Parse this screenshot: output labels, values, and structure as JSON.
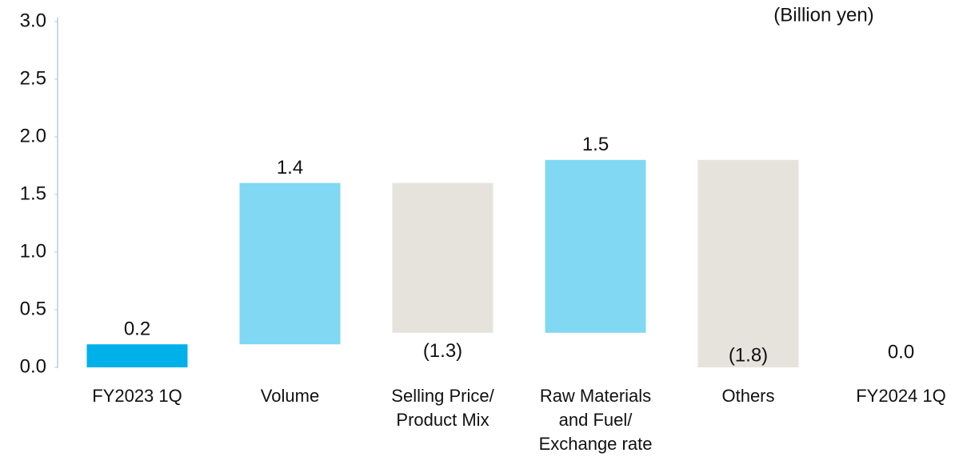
{
  "chart_data": {
    "type": "waterfall",
    "unit_label": "(Billion yen)",
    "categories": [
      "FY2023 1Q",
      "Volume",
      "Selling Price/ Product Mix",
      "Raw Materials and Fuel/ Exchange rate",
      "Others",
      "FY2024 1Q"
    ],
    "values": [
      0.2,
      1.4,
      -1.3,
      1.5,
      -1.8,
      0.0
    ],
    "value_labels": [
      "0.2",
      "1.4",
      "(1.3)",
      "1.5",
      "(1.8)",
      "0.0"
    ],
    "colors": [
      "#00b0e8",
      "#80d8f2",
      "#e6e3dd",
      "#80d8f2",
      "#e6e3dd",
      "#00b0e8"
    ],
    "ylim": [
      0,
      3
    ],
    "yticks": [
      {
        "value": 0,
        "label": "0.0"
      },
      {
        "value": 0.5,
        "label": "0.5"
      },
      {
        "value": 1,
        "label": "1.0"
      },
      {
        "value": 1.5,
        "label": "1.5"
      },
      {
        "value": 2,
        "label": "2.0"
      },
      {
        "value": 2.5,
        "label": "2.5"
      },
      {
        "value": 3,
        "label": "3.0"
      }
    ]
  }
}
